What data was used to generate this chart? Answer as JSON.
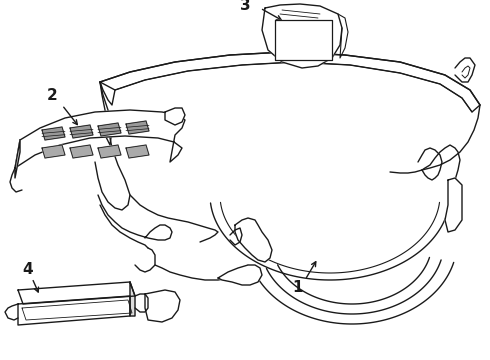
{
  "background_color": "#ffffff",
  "line_color": "#1a1a1a",
  "line_width": 1.0,
  "label_fontsize": 11,
  "figsize": [
    4.9,
    3.6
  ],
  "dpi": 100
}
